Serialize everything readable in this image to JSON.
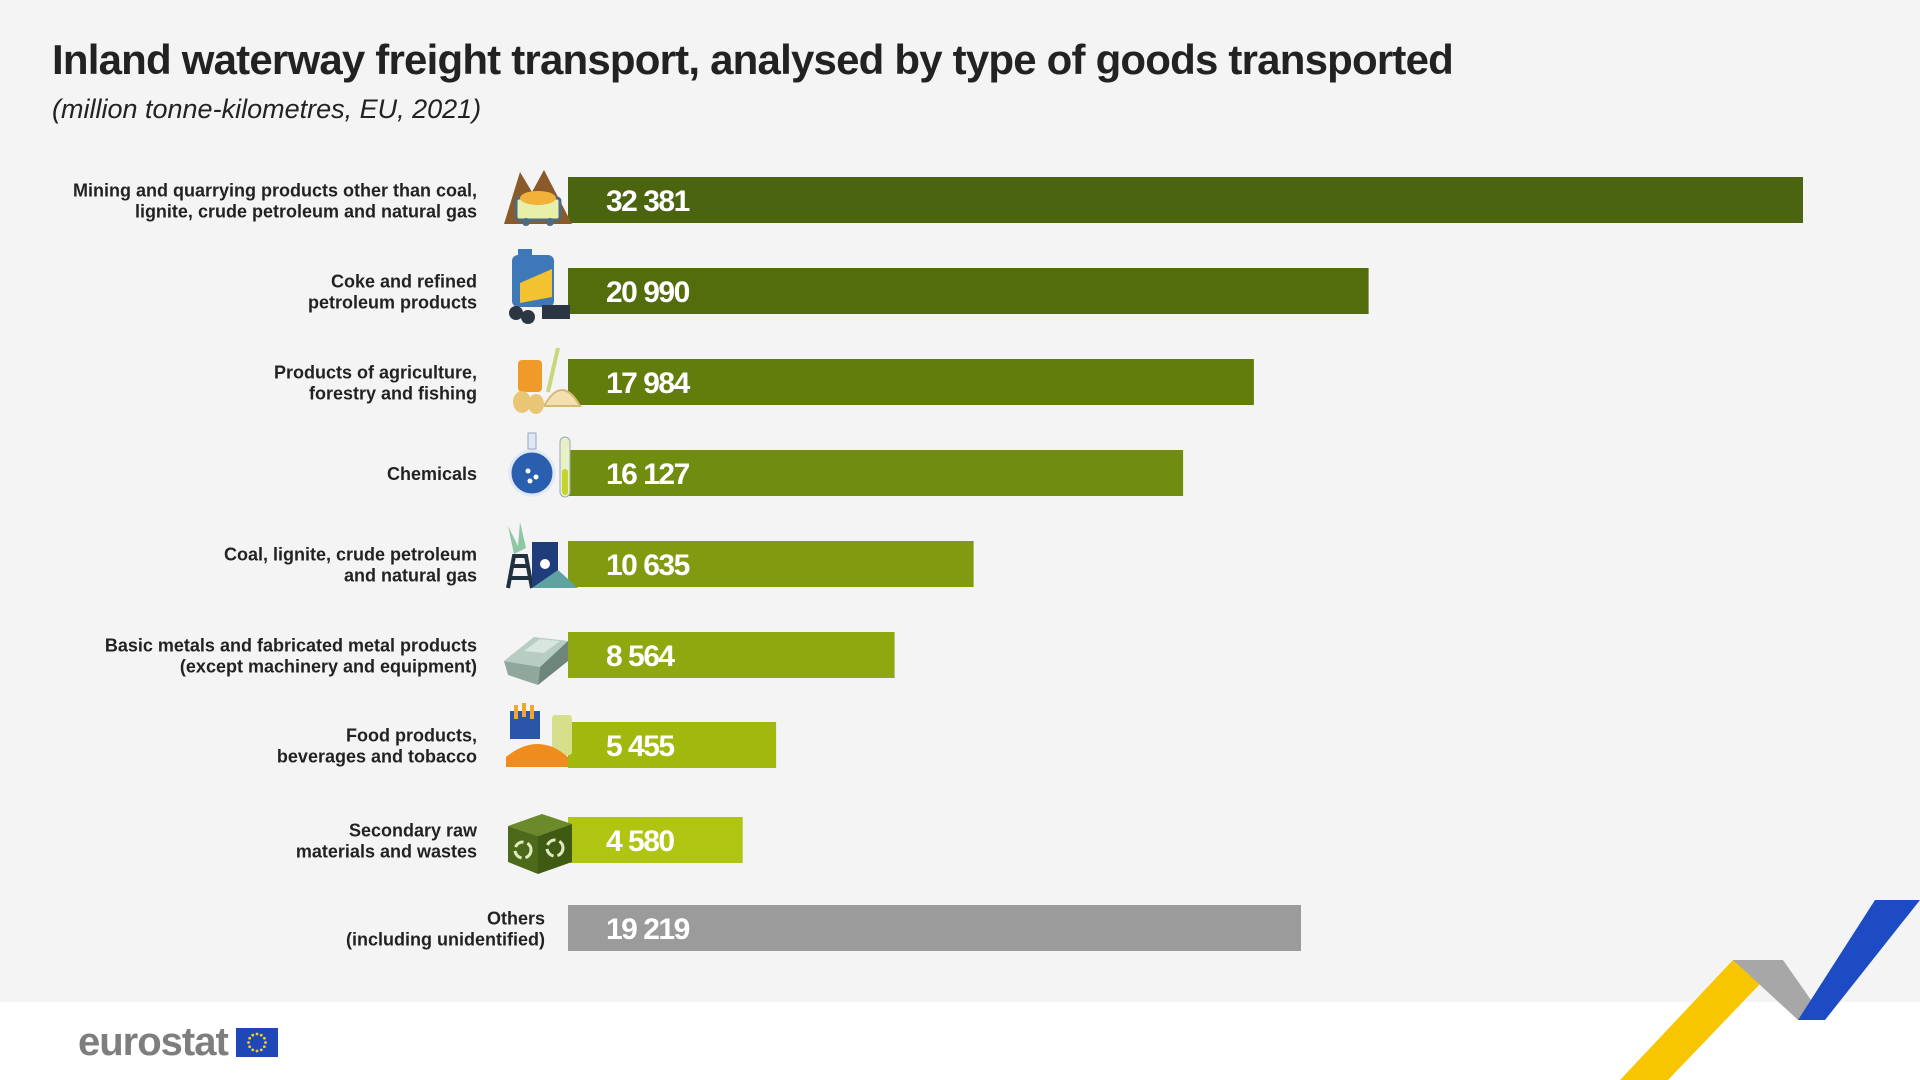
{
  "header": {
    "title": "Inland waterway freight transport, analysed by type of goods transported",
    "subtitle": "(million tonne-kilometres, EU, 2021)"
  },
  "chart_data": {
    "type": "bar",
    "orientation": "horizontal",
    "title": "Inland waterway freight transport, analysed by type of goods transported",
    "subtitle": "(million tonne-kilometres, EU, 2021)",
    "categories": [
      [
        "Mining and quarrying products other than coal,",
        "lignite, crude petroleum and natural gas"
      ],
      [
        "Coke and refined",
        "petroleum products"
      ],
      [
        "Products of agriculture,",
        "forestry and fishing"
      ],
      [
        "Chemicals"
      ],
      [
        "Coal, lignite, crude petroleum",
        "and natural gas"
      ],
      [
        "Basic metals and fabricated metal products",
        "(except machinery  and equipment)"
      ],
      [
        "Food products,",
        "beverages and tobacco"
      ],
      [
        "Secondary raw",
        "materials and wastes"
      ],
      [
        "Others",
        "(including unidentified)"
      ]
    ],
    "values": [
      32381,
      20990,
      17984,
      16127,
      10635,
      8564,
      5455,
      4580,
      19219
    ],
    "value_labels": [
      "32 381",
      "20 990",
      "17 984",
      "16 127",
      "10 635",
      "8 564",
      "5 455",
      "4 580",
      "19 219"
    ],
    "icons": [
      "mining-icon",
      "coke-petroleum-icon",
      "agriculture-icon",
      "chemicals-icon",
      "coal-oil-icon",
      "metals-icon",
      "food-icon",
      "recycling-icon",
      null
    ],
    "bar_colors": [
      "#4a6410",
      "#536d0c",
      "#637d0c",
      "#718d0f",
      "#819a10",
      "#8fa80f",
      "#a1b80f",
      "#b0c412",
      "#9b9b9b"
    ],
    "xlim": [
      0,
      32381
    ],
    "grid": false,
    "legend": "none"
  },
  "footer": {
    "logo_text": "eurostat"
  },
  "colors": {
    "background": "#f4f4f4",
    "label_text": "#222222",
    "value_text": "#ffffff",
    "decor_yellow": "#f7c600",
    "decor_grey": "#a7a7a7",
    "decor_blue": "#1d4bc3"
  }
}
